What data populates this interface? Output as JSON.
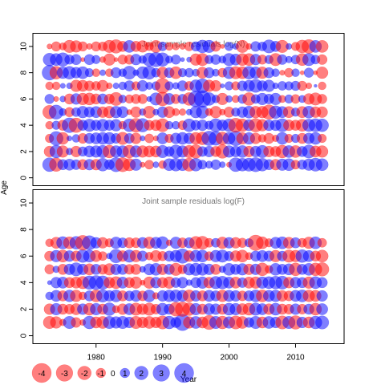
{
  "colors": {
    "positive": "#0000ff",
    "negative": "#ff0000",
    "frame": "#000000",
    "title": "#777777"
  },
  "chart_data": [
    {
      "type": "scatter",
      "title": "Joint sample residuals log(N)",
      "xlabel": "Year",
      "ylabel": "Age",
      "xlim": [
        1970.5,
        2017.3
      ],
      "ylim": [
        -0.6,
        11.0
      ],
      "xticks": [
        1980,
        1990,
        2000,
        2010
      ],
      "yticks": [
        0,
        2,
        4,
        6,
        8,
        10
      ],
      "x_start": 1973,
      "x_end": 2014,
      "ages": [
        1,
        2,
        3,
        4,
        5,
        6,
        7,
        8,
        9,
        10
      ],
      "residuals": {
        "10": [
          -0.3,
          -1,
          -0.6,
          -1.7,
          -1.5,
          -1,
          -0.4,
          -1,
          -0.9,
          -1.7,
          -2,
          -1.2,
          1.6,
          -1.2,
          -1.5,
          -0.8,
          -1.6,
          0.9,
          -0.7,
          -0.6,
          -0.4,
          -0.9,
          1,
          1.8,
          1.7,
          -1.1,
          -0.2,
          0.8,
          0.4,
          -1.7,
          -0.4,
          1.1,
          0.9,
          1.9,
          1.2,
          -1.7,
          0.4,
          -0.8,
          -1.8,
          -2.1,
          1.6,
          -1.6
        ],
        "9": [
          1.8,
          1.6,
          2,
          1,
          1.2,
          -0.2,
          1.2,
          0.8,
          -0.4,
          -1.5,
          -0.2,
          -1,
          -1,
          1.3,
          0.7,
          1.9,
          2.3,
          2,
          0.6,
          1,
          0.2,
          0.3,
          -1.5,
          -1.7,
          0.8,
          1.1,
          0.6,
          1.7,
          1.4,
          -1.6,
          -1.6,
          1.3,
          -1,
          0.8,
          -1.7,
          1.1,
          0.5,
          0.9,
          -1.6,
          1.7,
          0.9,
          -1.1
        ],
        "8": [
          2.4,
          -1.8,
          1.5,
          1.8,
          1.3,
          1.6,
          0.8,
          -0.7,
          0.4,
          -0.7,
          1.2,
          0.7,
          1.9,
          0.4,
          1.6,
          1.9,
          0.9,
          -1.4,
          1.1,
          -1.6,
          0.8,
          0.9,
          0.6,
          -1.4,
          1.2,
          0.6,
          -0.9,
          1.6,
          -1.7,
          -1.6,
          1.8,
          1.5,
          -1.5,
          1.2,
          0.7,
          -0.3,
          -0.9,
          0.7,
          -0.2,
          1,
          -0.2,
          -1.5
        ],
        "7": [
          -0.7,
          -0.7,
          0.3,
          0.4,
          -1.5,
          -1.4,
          -1.1,
          -0.9,
          -1.4,
          -0.4,
          0.4,
          0.7,
          1.2,
          -0.8,
          1.3,
          0.6,
          0.8,
          -2.4,
          0.8,
          0.5,
          1.2,
          -0.9,
          1.6,
          2.2,
          -1.5,
          -1.3,
          0.2,
          0.8,
          -0.8,
          1.1,
          1.4,
          1.9,
          1.2,
          1.5,
          0.4,
          0.9,
          0.8,
          1,
          -1,
          -0.4,
          0.1,
          -0.7
        ],
        "6": [
          1,
          -0.3,
          0.4,
          -1.2,
          1.3,
          -1.5,
          -1.6,
          -1.2,
          1.2,
          -1.1,
          -1.9,
          0.7,
          -0.8,
          -1,
          -1,
          0.3,
          1.7,
          -2.1,
          1.4,
          -1,
          1,
          -1.8,
          2.7,
          3,
          1.8,
          0.7,
          -1.5,
          0.5,
          -0.6,
          0.9,
          -1.8,
          0.9,
          1.5,
          1.1,
          1.5,
          -0.6,
          0.8,
          -0.9,
          0.6,
          -1.3,
          -1.7,
          -1
        ],
        "5": [
          -2,
          2.2,
          0.6,
          -1,
          0.9,
          1.5,
          1.2,
          1.4,
          -1.3,
          -1.5,
          1.5,
          1.4,
          -0.3,
          -1.3,
          0.5,
          -1.6,
          0.4,
          1.3,
          -1.4,
          -0.6,
          -0.5,
          0.4,
          1.5,
          1.7,
          -0.6,
          -1.5,
          -0.4,
          -1.2,
          0.8,
          1.3,
          1.6,
          -1.5,
          -1.5,
          -2.3,
          1.8,
          1.4,
          -1.4,
          0.8,
          -1.4,
          1.6,
          -1.3,
          -1.3
        ],
        "4": [
          -0.7,
          0.8,
          -1.2,
          2.4,
          -2.3,
          1.2,
          1.7,
          1.2,
          1.6,
          1.2,
          1.5,
          -0.7,
          1.8,
          -2.1,
          2,
          -1.1,
          -1.3,
          -1.9,
          0.7,
          0.7,
          -0.9,
          1.8,
          1.1,
          1.3,
          0.8,
          1.9,
          1.3,
          1.8,
          -2.2,
          -1.8,
          1.4,
          -2,
          -1.5,
          1.3,
          1.3,
          1.9,
          -1.3,
          -1.2,
          -1.6,
          1.7,
          1.9,
          1.8
        ],
        "3": [
          -0.8,
          2.1,
          -1.6,
          0.3,
          0.7,
          -1.1,
          1.2,
          1.4,
          1.6,
          1.6,
          1.1,
          -1.7,
          1.1,
          -1.3,
          0.3,
          -0.9,
          -0.3,
          1.4,
          -0.8,
          1.3,
          1.6,
          1.3,
          -1.6,
          -1.8,
          2.3,
          2.1,
          -1.8,
          1.6,
          2.4,
          -1.5,
          1.5,
          -1.3,
          -0.7,
          -1.2,
          -0.5,
          1.6,
          -0.8,
          0.8,
          -1.2,
          1.3,
          1.6,
          -0.8
        ],
        "2": [
          -1.3,
          1.8,
          -1.5,
          0.5,
          -1.3,
          1,
          1.4,
          1.5,
          1.7,
          -1.8,
          1.5,
          1.5,
          -1.8,
          1.5,
          -1.5,
          -1.4,
          -1.4,
          1.7,
          1.1,
          1.9,
          1.5,
          -1.7,
          -2,
          1.1,
          1.3,
          -1.2,
          -2,
          1.5,
          1.3,
          1.6,
          -1.3,
          1.3,
          1.7,
          -1.3,
          -1.2,
          -1.8,
          1.6,
          -1.6,
          1.2,
          1.9,
          -1.4,
          -1.5
        ],
        "1": [
          2.1,
          -2,
          1.2,
          1.4,
          1.1,
          -1.2,
          1.3,
          -1.3,
          1.8,
          1.1,
          2.2,
          -2.2,
          -1.7,
          1.5,
          -0.3,
          -0.9,
          0.4,
          -0.7,
          1.6,
          1.8,
          1.6,
          -1.9,
          1.8,
          0.9,
          0.6,
          1.1,
          0.4,
          -0.3,
          2.1,
          1.8,
          1.9,
          2.2,
          1.8,
          1.2,
          -1.3,
          1.5,
          1.6,
          -0.9,
          1,
          1.5,
          1.9,
          1.6
        ]
      }
    },
    {
      "type": "scatter",
      "title": "Joint sample residuals log(F)",
      "xlabel": "Year",
      "ylabel": "Age",
      "xlim": [
        1970.5,
        2017.3
      ],
      "ylim": [
        -0.6,
        11.0
      ],
      "xticks": [
        1980,
        1990,
        2000,
        2010
      ],
      "yticks": [
        0,
        2,
        4,
        6,
        8,
        10
      ],
      "x_start": 1973,
      "x_end": 2014,
      "ages": [
        1,
        2,
        3,
        4,
        5,
        6,
        7
      ],
      "residuals": {
        "7": [
          -0.7,
          -1.4,
          1.7,
          -1.6,
          1.8,
          -2.4,
          2.2,
          1.3,
          -1.3,
          -0.8,
          1.5,
          1.1,
          -1.2,
          -1.1,
          1.3,
          -1.5,
          1.4,
          1.7,
          -0.4,
          1.5,
          -1.1,
          1.2,
          -1.8,
          -1.9,
          -0.9,
          0.9,
          -1.5,
          1.3,
          -1.3,
          -1,
          0.8,
          -2.6,
          -1.6,
          -0.8,
          1.4,
          1.6,
          -1.4,
          1.2,
          -0.9,
          -1.5,
          1.6,
          -0.9
        ],
        "6": [
          -1.1,
          1.5,
          -1.6,
          1.3,
          -1.2,
          1.8,
          1.6,
          -1.4,
          -0.9,
          0.4,
          2,
          -1.3,
          1.7,
          -1.5,
          1.2,
          -0.7,
          -1.4,
          -1,
          1.2,
          1.5,
          2.3,
          -1.3,
          1.5,
          1.6,
          -0.9,
          1.5,
          1.7,
          1,
          -1.3,
          -1.6,
          -0.6,
          1.2,
          1.4,
          1.2,
          -1.5,
          1.1,
          -1.7,
          -1.5,
          1.8,
          1.4,
          -1.2,
          -1.6
        ],
        "5": [
          -1,
          0.5,
          -1.2,
          1.3,
          1.9,
          1.3,
          -1.4,
          1.2,
          -1.1,
          -1.5,
          1.3,
          1.2,
          -1.1,
          -1.2,
          0.4,
          1.4,
          1.6,
          -1.3,
          1.2,
          -1.7,
          -0.9,
          1.5,
          1.7,
          1.6,
          1.3,
          -1.2,
          0.5,
          1.6,
          1.2,
          1.5,
          -1.3,
          1.3,
          -1.8,
          -0.7,
          1.6,
          1.2,
          1.4,
          -1.8,
          1.2,
          1.6,
          -1.8,
          -2
        ],
        "4": [
          0.2,
          1.3,
          1.4,
          -1.2,
          -1.4,
          -1.7,
          2,
          2.2,
          2,
          -1.3,
          -1.6,
          1.4,
          -1.2,
          -1.5,
          -0.3,
          -1.5,
          1.3,
          -1.2,
          -1.5,
          1.1,
          1.3,
          0.4,
          1.2,
          1.5,
          -1.3,
          1.7,
          1.8,
          1.4,
          -1.4,
          1.1,
          -1.4,
          -1.5,
          1.5,
          1.6,
          1.8,
          1.9,
          -1.3,
          1.3,
          1.2,
          -1.5,
          1.6,
          1.2
        ],
        "3": [
          0.7,
          1.4,
          -1.2,
          1.5,
          -1.5,
          -0.7,
          1.2,
          -1.6,
          1.7,
          1.3,
          1.6,
          -1.2,
          1.1,
          1.4,
          -1.1,
          1.6,
          -0.5,
          1.3,
          1.5,
          1.6,
          1.4,
          -1.6,
          1.3,
          -1.2,
          1.4,
          1.2,
          -1.5,
          1.4,
          1.3,
          -1.1,
          1.2,
          1.6,
          -1.6,
          1.4,
          1.5,
          -1.3,
          -1.1,
          1.4,
          1.6,
          -1.5,
          -1.4,
          1.3
        ],
        "2": [
          -1.3,
          1.5,
          -1.2,
          -1.1,
          -1.4,
          1.3,
          -1.6,
          1.5,
          -1.2,
          1.8,
          -0.6,
          -1.3,
          1.4,
          -1.7,
          -1.3,
          -1.7,
          -1.1,
          1.6,
          1.2,
          -2.1,
          -2.3,
          -1.8,
          1.5,
          -1.2,
          1.4,
          1.3,
          -1.2,
          1.6,
          1.5,
          -1.4,
          -1.6,
          1.7,
          1.4,
          -1.3,
          1.6,
          -1.2,
          -1.1,
          1.3,
          -1.1,
          1.2,
          -1.6,
          1.4
        ],
        "1": [
          -1.7,
          -1.5,
          -0.5,
          1.7,
          -1.1,
          -0.4,
          1.8,
          -1.4,
          -1.6,
          1.7,
          1.5,
          1.7,
          1.3,
          -1.7,
          -1.3,
          -1.6,
          -1.3,
          -1.9,
          1.8,
          1.2,
          2.9,
          -1.5,
          1.6,
          -1.4,
          -2.2,
          1.7,
          -1.8,
          1.5,
          -1.9,
          -1.6,
          1.1,
          1.7,
          -1.4,
          1.6,
          1.3,
          -1.9,
          1.7,
          -2,
          1.3,
          -1.4,
          1.8,
          1.9
        ]
      }
    }
  ],
  "legend": {
    "entries": [
      {
        "label": "-4",
        "value": -4
      },
      {
        "label": "-3",
        "value": -3
      },
      {
        "label": "-2",
        "value": -2
      },
      {
        "label": "-1",
        "value": -1
      },
      {
        "label": "0",
        "value": 0
      },
      {
        "label": "1",
        "value": 1
      },
      {
        "label": "2",
        "value": 2
      },
      {
        "label": "3",
        "value": 3
      },
      {
        "label": "4",
        "value": 4
      }
    ]
  },
  "labels": {
    "year": "Year",
    "age": "Age"
  }
}
